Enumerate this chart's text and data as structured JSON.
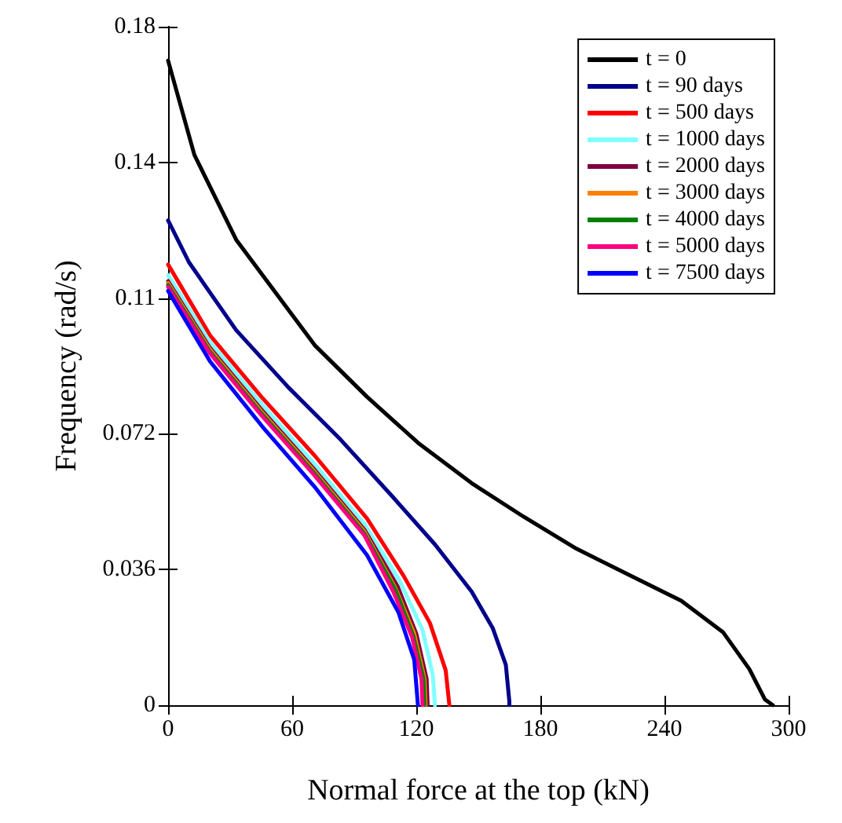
{
  "chart_data": {
    "type": "line",
    "xlabel": "Normal force at the top (kN)",
    "ylabel": "Frequency (rad/s)",
    "xlim": [
      0,
      300
    ],
    "xticks": [
      0,
      60,
      120,
      180,
      240,
      300
    ],
    "ylim": [
      0,
      0.18
    ],
    "yticks": [
      0,
      0.036,
      0.072,
      {
        "value": 0.108,
        "label": "0.11"
      },
      {
        "value": 0.144,
        "label": "0.14"
      },
      0.18
    ],
    "grid": false,
    "legend": "top right",
    "marker": "none",
    "line_style": "solid",
    "series": [
      {
        "name": "t = 0",
        "color": "#000000",
        "x": [
          0,
          12.7,
          32.9,
          70.9,
          96.2,
          121.5,
          146.8,
          172.2,
          197.5,
          222.8,
          248.1,
          268.4,
          281,
          288.6,
          292.4
        ],
        "values": [
          0.171,
          0.146,
          0.1235,
          0.0955,
          0.0818,
          0.0693,
          0.0589,
          0.0499,
          0.0415,
          0.0346,
          0.0277,
          0.0193,
          0.0096,
          0.0015,
          0
        ]
      },
      {
        "name": "t = 90 days",
        "color": "#00008b",
        "x": [
          0,
          10.1,
          32.9,
          58.2,
          83.5,
          108.9,
          129.1,
          146.8,
          157,
          163.3,
          165,
          165
        ],
        "values": [
          0.1286,
          0.1175,
          0.0995,
          0.0843,
          0.0704,
          0.0551,
          0.0426,
          0.0301,
          0.0204,
          0.0107,
          0.001,
          0
        ]
      },
      {
        "name": "t = 500 days",
        "color": "#ff0000",
        "x": [
          0,
          20.3,
          45.6,
          70.9,
          96.2,
          113.9,
          126.6,
          134.2,
          136
        ],
        "values": [
          0.1169,
          0.0981,
          0.0815,
          0.0662,
          0.0495,
          0.0343,
          0.0218,
          0.0093,
          0
        ]
      },
      {
        "name": "t = 1000 days",
        "color": "#80ffff",
        "x": [
          0,
          20,
          45,
          70,
          95,
          112,
          123,
          128,
          129
        ],
        "values": [
          0.1141,
          0.0965,
          0.08,
          0.0645,
          0.048,
          0.033,
          0.02,
          0.008,
          0
        ]
      },
      {
        "name": "t = 2000 days",
        "color": "#800040",
        "x": [
          0,
          20,
          45,
          70,
          95,
          111,
          120,
          125,
          125.5
        ],
        "values": [
          0.1125,
          0.095,
          0.0785,
          0.063,
          0.0465,
          0.0315,
          0.019,
          0.007,
          0
        ]
      },
      {
        "name": "t = 3000 days",
        "color": "#ff8000",
        "x": [
          0,
          20,
          45,
          70,
          95,
          110,
          119,
          124,
          124.5
        ],
        "values": [
          0.112,
          0.0945,
          0.078,
          0.0625,
          0.046,
          0.031,
          0.019,
          0.007,
          0
        ]
      },
      {
        "name": "t = 4000 days",
        "color": "#008000",
        "x": [
          0,
          20,
          45,
          70,
          95,
          110,
          118.5,
          123.5,
          124
        ],
        "values": [
          0.1115,
          0.094,
          0.0775,
          0.062,
          0.0455,
          0.0305,
          0.0185,
          0.007,
          0
        ]
      },
      {
        "name": "t = 5000 days",
        "color": "#ff0080",
        "x": [
          0,
          20,
          45,
          70,
          95,
          109,
          118,
          122.5,
          123
        ],
        "values": [
          0.111,
          0.0935,
          0.077,
          0.0615,
          0.045,
          0.03,
          0.018,
          0.007,
          0
        ]
      },
      {
        "name": "t = 7500 days",
        "color": "#0000ff",
        "x": [
          0,
          20.3,
          45.6,
          70.9,
          96.2,
          111.4,
          119,
          120.8
        ],
        "values": [
          0.1099,
          0.0912,
          0.0739,
          0.0579,
          0.0398,
          0.0246,
          0.0121,
          0
        ]
      }
    ]
  }
}
